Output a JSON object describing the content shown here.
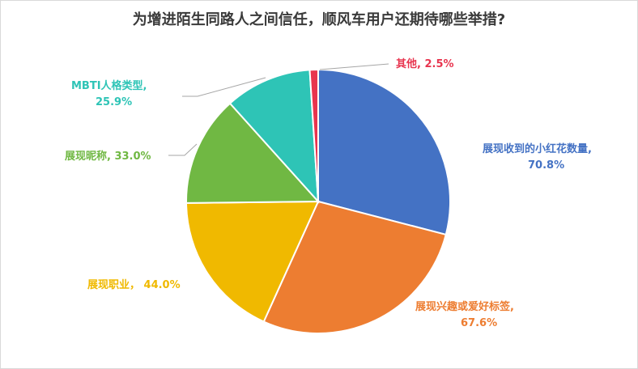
{
  "chart_data": {
    "type": "pie",
    "title": "为增进陌生同路人之间信任，顺风车用户还期待哪些举措?",
    "slices": [
      {
        "label": "展现收到的小红花数量,",
        "value_label": "70.8%",
        "value": 70.8,
        "color": "#4472C4"
      },
      {
        "label": "展现兴趣或爱好标签,",
        "value_label": "67.6%",
        "value": 67.6,
        "color": "#ED7D31"
      },
      {
        "label": "展现职业，",
        "value_label": "44.0%",
        "value": 44.0,
        "color": "#F0B900"
      },
      {
        "label": "展现昵称,",
        "value_label": "33.0%",
        "value": 33.0,
        "color": "#70B843"
      },
      {
        "label": "MBTI人格类型,",
        "value_label": "25.9%",
        "value": 25.9,
        "color": "#2EC4B6"
      },
      {
        "label": "其他,",
        "value_label": "2.5%",
        "value": 2.5,
        "color": "#E8344E"
      }
    ]
  }
}
